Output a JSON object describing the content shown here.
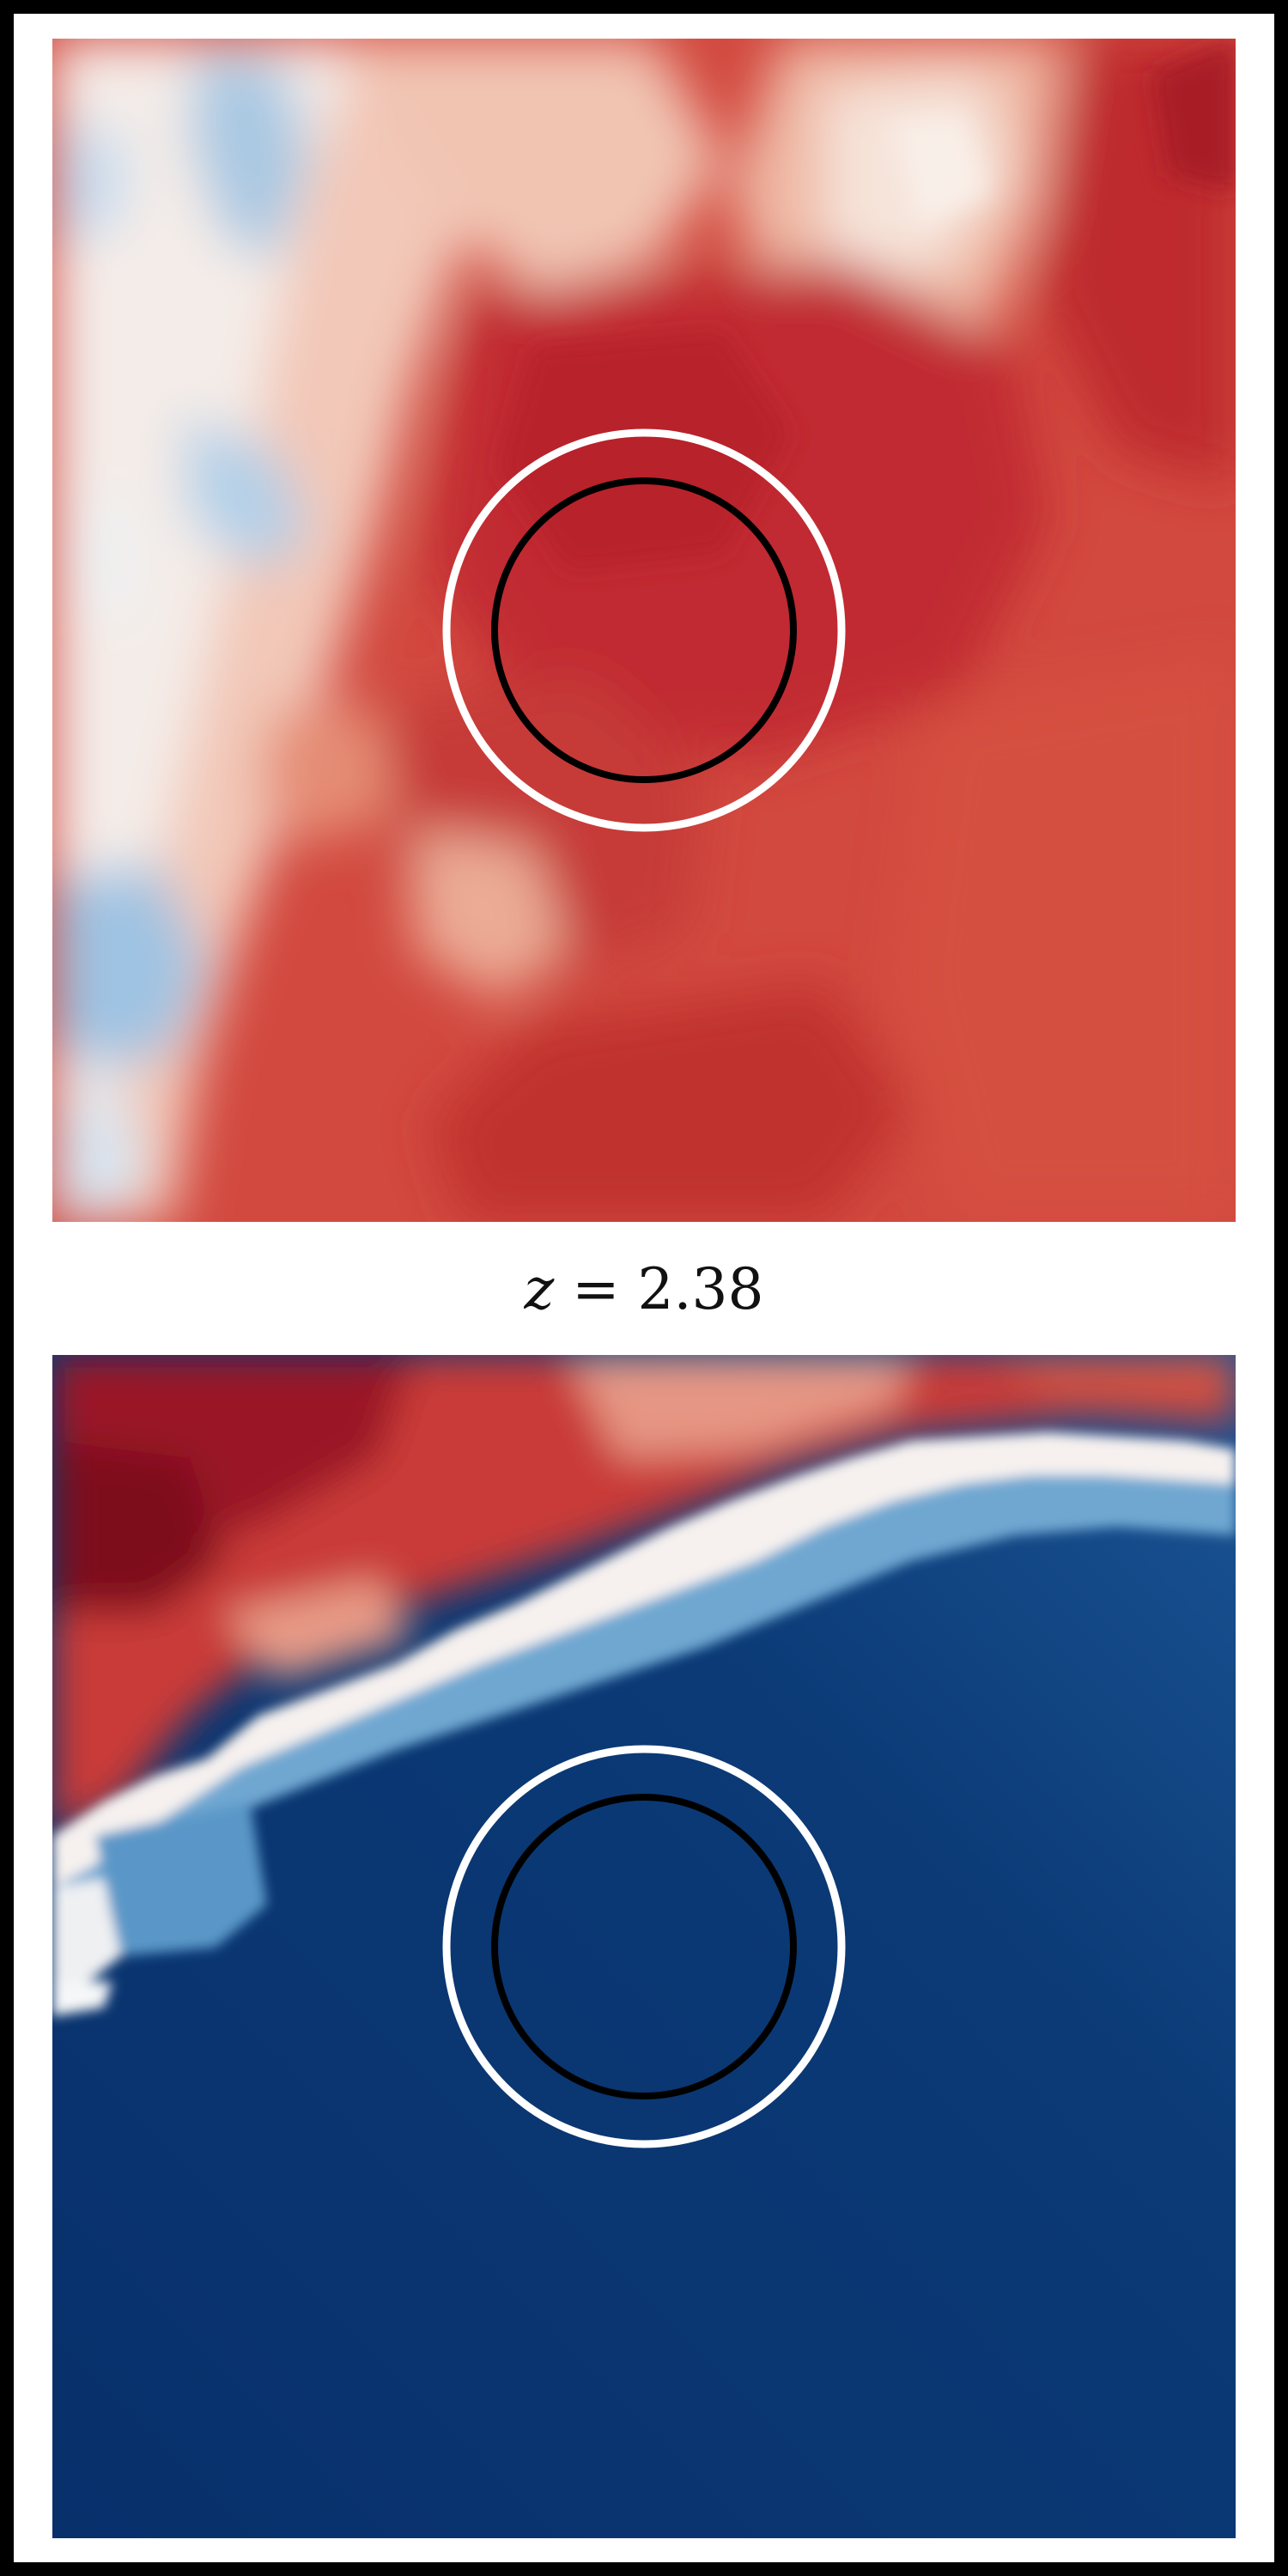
{
  "redshift_label": {
    "variable": "z",
    "operator": " = ",
    "value": "2.38"
  },
  "panels": [
    {
      "name": "top-map",
      "overall_tone": "red",
      "inner_ring_color": "#000000",
      "outer_ring_color": "#ffffff"
    },
    {
      "name": "bottom-map",
      "overall_tone": "blue",
      "inner_ring_color": "#000000",
      "outer_ring_color": "#ffffff"
    }
  ],
  "colormap": {
    "dark_red": "#8e0b1f",
    "red": "#c0272d",
    "light_red": "#e47a68",
    "white": "#f7f5f3",
    "light_blue": "#c6dcee",
    "blue": "#2f6fb1",
    "dark_blue": "#08306b"
  }
}
